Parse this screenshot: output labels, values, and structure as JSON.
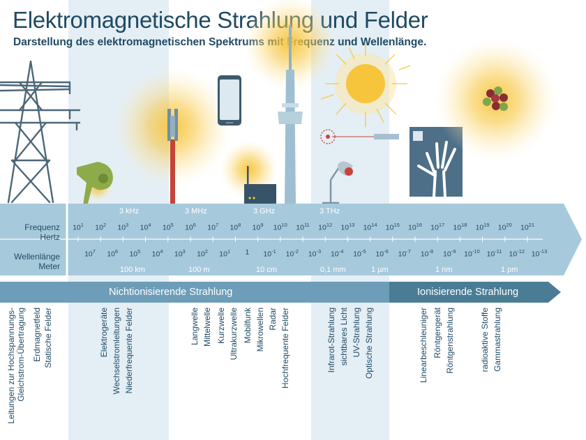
{
  "title": "Elektromagnetische Strahlung und Felder",
  "subtitle": "Darstellung des elektromagnetischen Spektrums mit Frequenz und Wellenlänge.",
  "axis": {
    "frequency_label": "Frequenz",
    "frequency_unit": "Hertz",
    "wavelength_label": "Wellenlänge",
    "wavelength_unit": "Meter"
  },
  "frequency_markers": [
    "3 kHz",
    "3 MHz",
    "3 GHz",
    "3 THz"
  ],
  "frequency_exponents": [
    "1",
    "2",
    "3",
    "4",
    "5",
    "6",
    "7",
    "8",
    "9",
    "10",
    "11",
    "12",
    "13",
    "14",
    "15",
    "16",
    "17",
    "18",
    "19",
    "20",
    "21"
  ],
  "wavelength_values": [
    {
      "base": "10",
      "exp": "7"
    },
    {
      "base": "10",
      "exp": "6"
    },
    {
      "base": "10",
      "exp": "5"
    },
    {
      "base": "10",
      "exp": "4"
    },
    {
      "base": "10",
      "exp": "3"
    },
    {
      "base": "10",
      "exp": "2"
    },
    {
      "base": "10",
      "exp": "1"
    },
    {
      "base": "1",
      "exp": ""
    },
    {
      "base": "10",
      "exp": "-1"
    },
    {
      "base": "10",
      "exp": "-2"
    },
    {
      "base": "10",
      "exp": "-3"
    },
    {
      "base": "10",
      "exp": "-4"
    },
    {
      "base": "10",
      "exp": "-5"
    },
    {
      "base": "10",
      "exp": "-6"
    },
    {
      "base": "10",
      "exp": "-7"
    },
    {
      "base": "10",
      "exp": "-8"
    },
    {
      "base": "10",
      "exp": "-9"
    },
    {
      "base": "10",
      "exp": "-10"
    },
    {
      "base": "10",
      "exp": "-11"
    },
    {
      "base": "10",
      "exp": "-12"
    },
    {
      "base": "10",
      "exp": "-13"
    }
  ],
  "wavelength_markers": [
    "100 km",
    "100 m",
    "10 cm",
    "0,1 mm",
    "1 µm",
    "1 nm",
    "1 pm"
  ],
  "categories": {
    "non_ionizing": "Nichtionisierende Strahlung",
    "ionizing": "Ionisierende Strahlung"
  },
  "groups": [
    [
      "Statische Felder",
      "Erdmagnetfeld",
      "Leitungen zur Hochspannungs-\nGleichstrom-Übertragung"
    ],
    [
      "Niederfrequente Felder",
      "Wechselstromleitungen",
      "Elektrogeräte"
    ],
    [
      "Hochfrequente Felder",
      "Radar",
      "Mikrowellen",
      "Mobilfunk",
      "Ultrakurzwelle",
      "Kurzwelle",
      "Mittelwelle",
      "Langwelle"
    ],
    [
      "Optische Strahlung",
      "UV-Strahlung",
      "sichtbares Licht",
      "Infrarot-Strahlung"
    ],
    [
      "Röntgenstrahlung",
      "Röntgengerät",
      "Linearbeschleuniger"
    ],
    [
      "Gammastrahlung",
      "radioaktive Stoffe"
    ]
  ],
  "colors": {
    "title": "#1f4a63",
    "band": "#e4eef5",
    "arrow": "#a7c9dc",
    "banner_nonionizing": "#6d9db8",
    "banner_ionizing": "#4a7d95",
    "glow": "#f7c53c",
    "pylon": "#4b6778",
    "antenna_red": "#c64437",
    "hairdryer": "#8dab4a"
  }
}
